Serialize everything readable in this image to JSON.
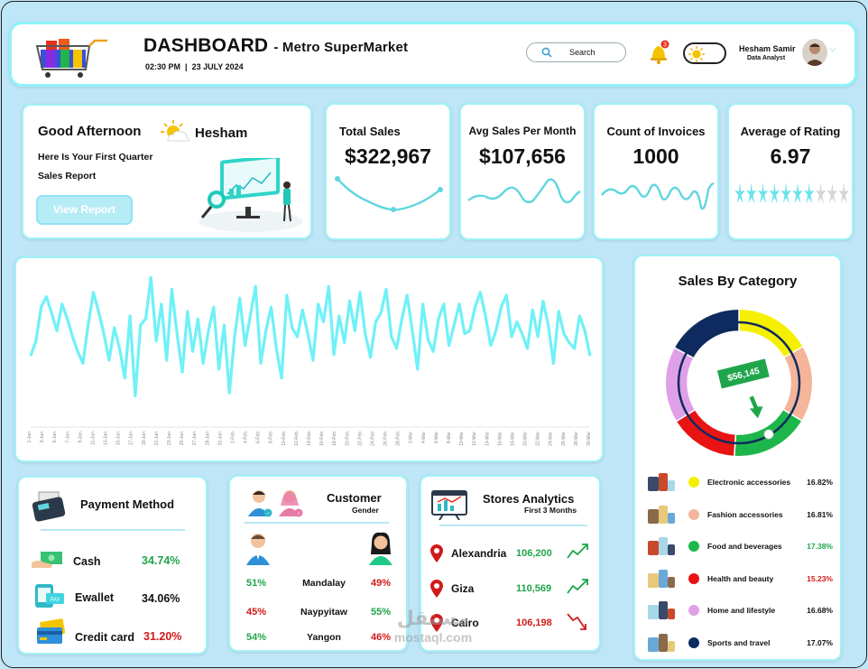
{
  "header": {
    "title": "DASHBOARD",
    "subtitle": "- Metro SuperMarket",
    "time": "02:30 PM",
    "date": "23 JULY 2024",
    "search_placeholder": "Search",
    "notification_count": "3",
    "user_name": "Hesham Samir",
    "user_role": "Data Analyst"
  },
  "greeting": {
    "title": "Good Afternoon",
    "name": "Hesham",
    "line1": "Here Is Your First Quarter",
    "line2": "Sales Report",
    "button": "View Report"
  },
  "kpis": {
    "total_sales": {
      "label": "Total Sales",
      "value": "$322,967"
    },
    "avg_sales": {
      "label": "Avg Sales Per Month",
      "value": "$107,656"
    },
    "invoices": {
      "label": "Count of Invoices",
      "value": "1000"
    },
    "rating": {
      "label": "Average of Rating",
      "value": "6.97",
      "stars_filled": 7,
      "stars_total": 10
    }
  },
  "trend_chart": {
    "type": "line",
    "color": "#6ff1f7",
    "x_labels": [
      "1-Jan",
      "3-Jan",
      "5-Jan",
      "7-Jan",
      "9-Jan",
      "11-Jan",
      "13-Jan",
      "15-Jan",
      "17-Jan",
      "19-Jan",
      "21-Jan",
      "23-Jan",
      "25-Jan",
      "27-Jan",
      "29-Jan",
      "31-Jan",
      "2-Feb",
      "4-Feb",
      "6-Feb",
      "8-Feb",
      "10-Feb",
      "12-Feb",
      "14-Feb",
      "16-Feb",
      "18-Feb",
      "20-Feb",
      "22-Feb",
      "24-Feb",
      "26-Feb",
      "28-Feb",
      "2-Mar",
      "4-Mar",
      "6-Mar",
      "8-Mar",
      "10-Mar",
      "12-Mar",
      "14-Mar",
      "16-Mar",
      "18-Mar",
      "20-Mar",
      "22-Mar",
      "24-Mar",
      "26-Mar",
      "28-Mar",
      "30-Mar"
    ],
    "values": [
      0.45,
      0.55,
      0.78,
      0.85,
      0.74,
      0.62,
      0.8,
      0.7,
      0.58,
      0.48,
      0.4,
      0.66,
      0.88,
      0.75,
      0.6,
      0.42,
      0.64,
      0.5,
      0.3,
      0.72,
      0.18,
      0.66,
      0.7,
      0.98,
      0.55,
      0.8,
      0.42,
      0.9,
      0.6,
      0.34,
      0.75,
      0.48,
      0.7,
      0.4,
      0.62,
      0.78,
      0.36,
      0.66,
      0.2,
      0.58,
      0.84,
      0.52,
      0.72,
      0.92,
      0.4,
      0.62,
      0.78,
      0.5,
      0.3,
      0.86,
      0.64,
      0.58,
      0.76,
      0.6,
      0.42,
      0.8,
      0.68,
      0.92,
      0.46,
      0.72,
      0.54,
      0.82,
      0.62,
      0.88,
      0.6,
      0.44,
      0.68,
      0.74,
      0.9,
      0.58,
      0.5,
      0.7,
      0.86,
      0.62,
      0.36,
      0.8,
      0.56,
      0.48,
      0.7,
      0.8,
      0.52,
      0.66,
      0.8,
      0.6,
      0.62,
      0.78,
      0.88,
      0.72,
      0.52,
      0.62,
      0.78,
      0.86,
      0.58,
      0.68,
      0.6,
      0.5,
      0.76,
      0.58,
      0.82,
      0.66,
      0.4,
      0.75,
      0.6,
      0.54,
      0.5,
      0.72,
      0.62,
      0.45
    ]
  },
  "sales_by_category": {
    "title": "Sales By Category",
    "callout": "$56,145",
    "items": [
      {
        "name": "Electronic accessories",
        "percent": "16.82%",
        "color": "#f5f000",
        "pct_class": ""
      },
      {
        "name": "Fashion accessories",
        "percent": "16.81%",
        "color": "#f4b59a",
        "pct_class": ""
      },
      {
        "name": "Food and beverages",
        "percent": "17.38%",
        "color": "#1db64a",
        "pct_class": "green"
      },
      {
        "name": "Health and beauty",
        "percent": "15.23%",
        "color": "#e81414",
        "pct_class": "red"
      },
      {
        "name": "Home and lifestyle",
        "percent": "16.68%",
        "color": "#dfa0e8",
        "pct_class": ""
      },
      {
        "name": "Sports and travel",
        "percent": "17.07%",
        "color": "#0e2a5e",
        "pct_class": ""
      }
    ]
  },
  "payment": {
    "title": "Payment Method",
    "rows": [
      {
        "label": "Cash",
        "value": "34.74%"
      },
      {
        "label": "Ewallet",
        "value": "34.06%"
      },
      {
        "label": "Credit card",
        "value": "31.20%"
      }
    ]
  },
  "customer": {
    "title": "Customer",
    "subtitle": "Gender",
    "rows": [
      {
        "city": "Mandalay",
        "male": "51%",
        "female": "49%"
      },
      {
        "city": "Naypyitaw",
        "male": "45%",
        "female": "55%"
      },
      {
        "city": "Yangon",
        "male": "54%",
        "female": "46%"
      }
    ]
  },
  "stores": {
    "title": "Stores Analytics",
    "subtitle": "First 3 Months",
    "rows": [
      {
        "city": "Alexandria",
        "value": "106,200"
      },
      {
        "city": "Giza",
        "value": "110,569"
      },
      {
        "city": "Cairo",
        "value": "106,198"
      }
    ]
  },
  "watermark": {
    "line1": "مستقل",
    "line2": "mostaql.com"
  }
}
